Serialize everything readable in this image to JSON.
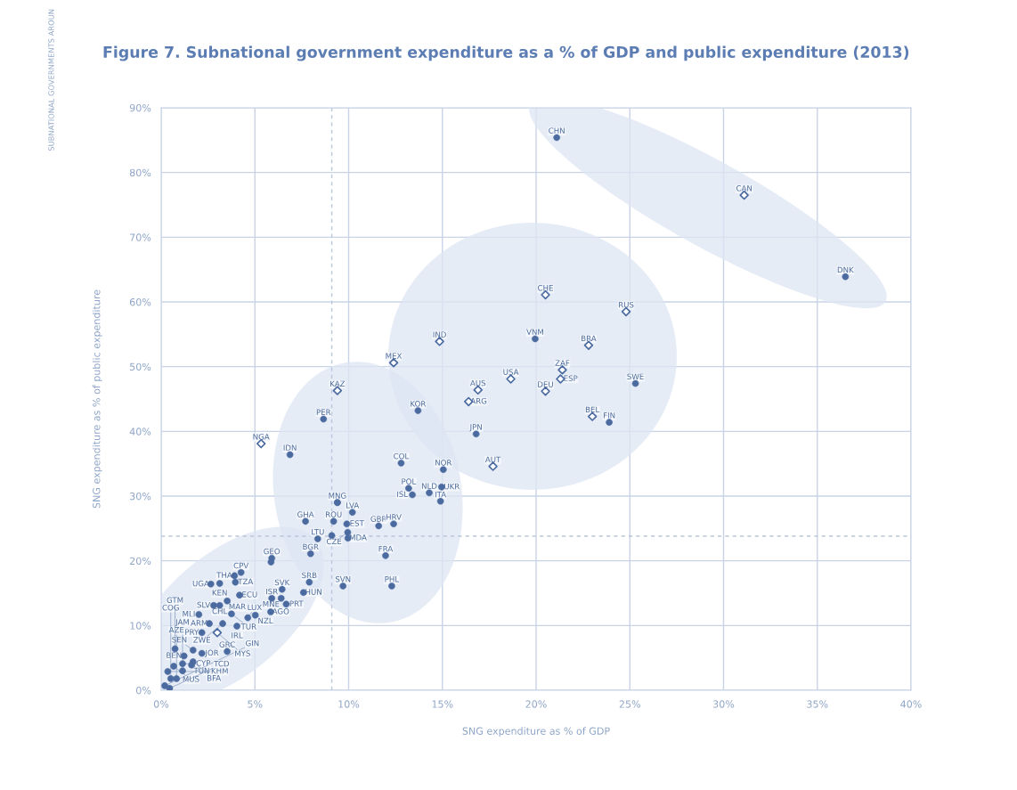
{
  "chart_data": {
    "type": "scatter",
    "title": "Figure 7. Subnational government expenditure as a % of GDP and public expenditure (2013)",
    "xlabel": "SNG expenditure as % of GDP",
    "ylabel": "SNG expenditure as % of public expenditure",
    "annotations": [
      "SUBNATIONAL GOVERNMENTS AROUN"
    ],
    "xlim": [
      0,
      40
    ],
    "ylim": [
      0,
      90
    ],
    "xticks": [
      {
        "value": 0,
        "label": "0%"
      },
      {
        "value": 5,
        "label": "5%"
      },
      {
        "value": 10,
        "label": "10%"
      },
      {
        "value": 15,
        "label": "15%"
      },
      {
        "value": 20,
        "label": "20%"
      },
      {
        "value": 25,
        "label": "25%"
      },
      {
        "value": 30,
        "label": "30%"
      },
      {
        "value": 35,
        "label": "35%"
      },
      {
        "value": 40,
        "label": "40%"
      }
    ],
    "yticks": [
      {
        "value": 0,
        "label": "0%"
      },
      {
        "value": 10,
        "label": "10%"
      },
      {
        "value": 20,
        "label": "20%"
      },
      {
        "value": 30,
        "label": "30%"
      },
      {
        "value": 40,
        "label": "40%"
      },
      {
        "value": 50,
        "label": "50%"
      },
      {
        "value": 60,
        "label": "60%"
      },
      {
        "value": 70,
        "label": "70%"
      },
      {
        "value": 80,
        "label": "80%"
      },
      {
        "value": 90,
        "label": "90%"
      }
    ],
    "grid": true,
    "legend": false,
    "ref_lines": [
      {
        "axis": "x",
        "value": 9.1,
        "color": "#b9c6dc",
        "line_style": "dashed"
      },
      {
        "axis": "y",
        "value": 23.8,
        "color": "#b9c6dc",
        "line_style": "dashed"
      }
    ],
    "series": [
      {
        "marker": "circle",
        "color": "#4a6aa0",
        "x": [
          21.1,
          36.5,
          19.95,
          25.3,
          23.9,
          13.7,
          16.8,
          15.05,
          12.8,
          9.4,
          8.66,
          6.87,
          13.2,
          14.3,
          14.96,
          13.4,
          14.9,
          9.4,
          10.2,
          7.7,
          9.2,
          9.9,
          11.6,
          12.4,
          9.96,
          8.35,
          9.1,
          9.95,
          7.97,
          11.97,
          9.7,
          12.3,
          5.9,
          5.86,
          7.9,
          4.26,
          3.91,
          3.12,
          3.96,
          2.65,
          4.18,
          3.52,
          3.12,
          2.8,
          3.75,
          2.01,
          4.62,
          5.02,
          4.04,
          3.28,
          2.57,
          2.17,
          1.7,
          2.17,
          3.52,
          1.22,
          0.67,
          1.14,
          1.62,
          0.35,
          1.7,
          1.14,
          0.82,
          0.51,
          0.19,
          0.45,
          0.74,
          6.45,
          7.59,
          5.9,
          6.4,
          6.67,
          5.84
        ],
        "values": [
          85.4,
          63.9,
          54.3,
          47.4,
          41.4,
          43.2,
          39.6,
          34.1,
          35.1,
          29.0,
          41.9,
          36.4,
          31.2,
          30.5,
          31.4,
          30.2,
          29.2,
          29.0,
          27.5,
          26.1,
          26.1,
          25.7,
          25.4,
          25.7,
          23.5,
          23.4,
          23.9,
          24.4,
          21.1,
          20.8,
          16.1,
          16.1,
          20.4,
          19.8,
          16.7,
          18.2,
          17.7,
          16.5,
          16.7,
          16.4,
          14.7,
          13.8,
          13.1,
          13.1,
          11.8,
          11.7,
          11.2,
          11.6,
          9.9,
          10.3,
          10.3,
          8.9,
          6.2,
          5.7,
          6.0,
          5.3,
          3.7,
          4.1,
          3.9,
          2.9,
          4.4,
          3.0,
          1.8,
          1.8,
          0.7,
          0.3,
          6.4,
          15.6,
          15.1,
          14.2,
          14.2,
          13.3,
          12.1
        ],
        "value_labels": [
          "CHN",
          "DNK",
          "VNM",
          "SWE",
          "FIN",
          "KOR",
          "JPN",
          "NOR",
          "COL",
          null,
          "PER",
          "IDN",
          "POL",
          "NLD",
          "UKR",
          "ISL",
          "ITA",
          "MNG",
          "LVA",
          "GHA",
          "ROU",
          "EST",
          "GBR",
          "HRV",
          "MDA",
          "LTU",
          null,
          "CZE",
          "BGR",
          "FRA",
          "SVN",
          "PHL",
          "GEO",
          null,
          "SRB",
          "CPV",
          "THA",
          "KEN",
          "TZA",
          "UGA",
          "ECU",
          "MAR",
          "CHL",
          "SLV",
          "TUR",
          "MLI",
          "LUX",
          "NZL",
          "IRL",
          "ZWE",
          "ARM",
          "PRY",
          "SEN",
          "JOR",
          "GRC",
          "BEN",
          "MUS",
          "CYP",
          "TUN",
          "KHM",
          "BFA",
          "JAM",
          "AZE",
          "COG",
          "GIN",
          "TCD",
          "GTM",
          "SVK",
          "HUN",
          "ISR",
          "MNE",
          "PRT",
          "AGO"
        ]
      },
      {
        "marker": "diamond",
        "color": "#4a6aa0",
        "x": [
          31.1,
          20.5,
          24.8,
          22.8,
          21.4,
          21.3,
          20.5,
          23.0,
          14.85,
          12.4,
          18.65,
          16.9,
          16.4,
          17.7,
          5.33,
          2.99,
          9.4
        ],
        "values": [
          76.5,
          61.1,
          58.5,
          53.3,
          49.5,
          48.1,
          46.2,
          42.3,
          53.9,
          50.6,
          48.1,
          46.4,
          44.6,
          34.6,
          38.1,
          8.9,
          46.3
        ],
        "value_labels": [
          "CAN",
          "CHE",
          "RUS",
          "BRA",
          "ZAF",
          "ESP",
          "DEU",
          "BEL",
          "IND",
          "MEX",
          "USA",
          "AUS",
          "ARG",
          "AUT",
          "NGA",
          "MYS",
          "KAZ"
        ]
      }
    ]
  }
}
